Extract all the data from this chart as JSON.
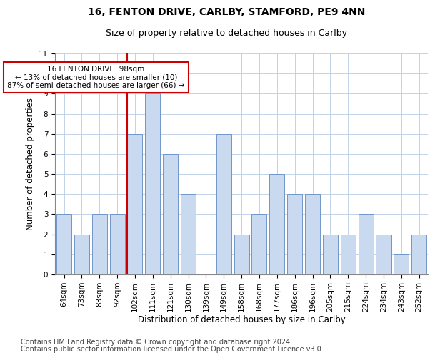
{
  "title1": "16, FENTON DRIVE, CARLBY, STAMFORD, PE9 4NN",
  "title2": "Size of property relative to detached houses in Carlby",
  "xlabel": "Distribution of detached houses by size in Carlby",
  "ylabel": "Number of detached properties",
  "categories": [
    "64sqm",
    "73sqm",
    "83sqm",
    "92sqm",
    "102sqm",
    "111sqm",
    "121sqm",
    "130sqm",
    "139sqm",
    "149sqm",
    "158sqm",
    "168sqm",
    "177sqm",
    "186sqm",
    "196sqm",
    "205sqm",
    "215sqm",
    "224sqm",
    "234sqm",
    "243sqm",
    "252sqm"
  ],
  "values": [
    3,
    2,
    3,
    3,
    7,
    9,
    6,
    4,
    0,
    7,
    2,
    3,
    5,
    4,
    4,
    2,
    2,
    3,
    2,
    1,
    2
  ],
  "bar_color": "#c9d9f0",
  "bar_edge_color": "#7096c8",
  "property_line_index": 4,
  "annotation_line1": "16 FENTON DRIVE: 98sqm",
  "annotation_line2": "← 13% of detached houses are smaller (10)",
  "annotation_line3": "87% of semi-detached houses are larger (66) →",
  "annotation_box_color": "#cc0000",
  "ylim": [
    0,
    11
  ],
  "yticks": [
    0,
    1,
    2,
    3,
    4,
    5,
    6,
    7,
    8,
    9,
    10,
    11
  ],
  "grid_color": "#b8cce4",
  "footer1": "Contains HM Land Registry data © Crown copyright and database right 2024.",
  "footer2": "Contains public sector information licensed under the Open Government Licence v3.0.",
  "title1_fontsize": 10,
  "title2_fontsize": 9,
  "xlabel_fontsize": 8.5,
  "ylabel_fontsize": 8.5,
  "tick_fontsize": 7.5,
  "annotation_fontsize": 7.5,
  "footer_fontsize": 7
}
